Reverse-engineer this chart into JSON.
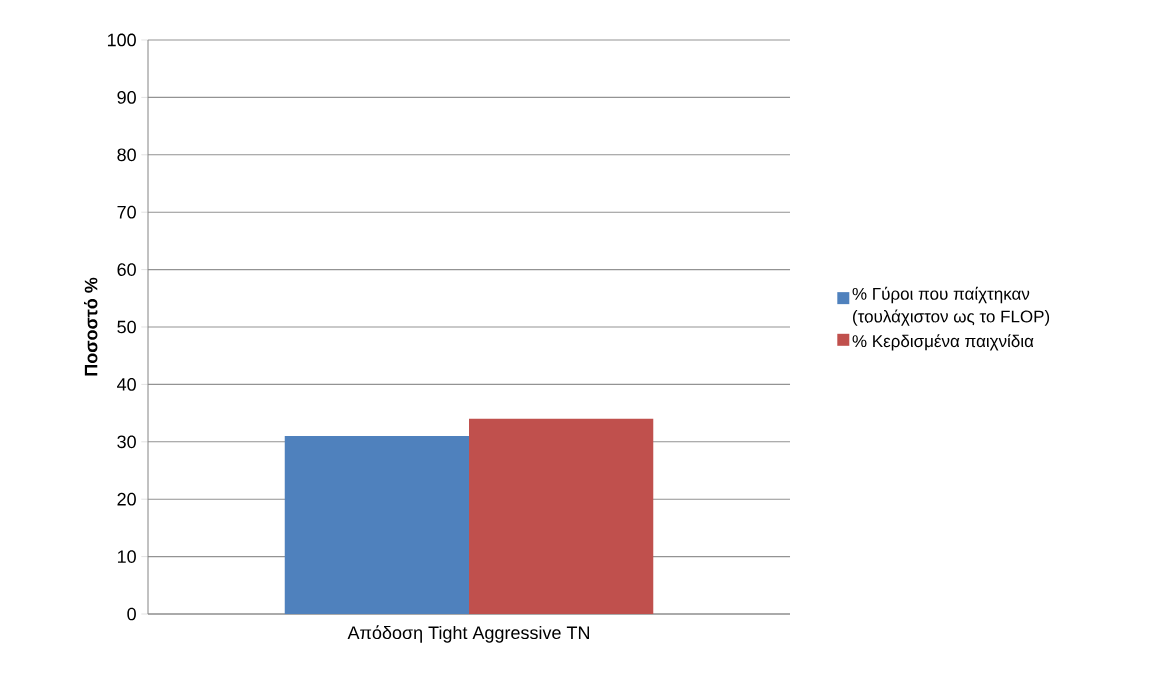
{
  "chart_data": {
    "type": "bar",
    "ylabel": "Ποσοστό %",
    "categories": [
      "Απόδοση Tight Aggressive TN"
    ],
    "series": [
      {
        "name": "% Γύροι που παίχτηκαν (τουλάχιστον ως το FLOP)",
        "color": "#4f81bd",
        "values": [
          31
        ]
      },
      {
        "name": "% Κερδισμένα παιχνίδια",
        "color": "#c0504d",
        "values": [
          34
        ]
      }
    ],
    "ylim": [
      0,
      100
    ],
    "yticks": [
      0,
      10,
      20,
      30,
      40,
      50,
      60,
      70,
      80,
      90,
      100
    ],
    "grid": "y",
    "legend": "right"
  }
}
